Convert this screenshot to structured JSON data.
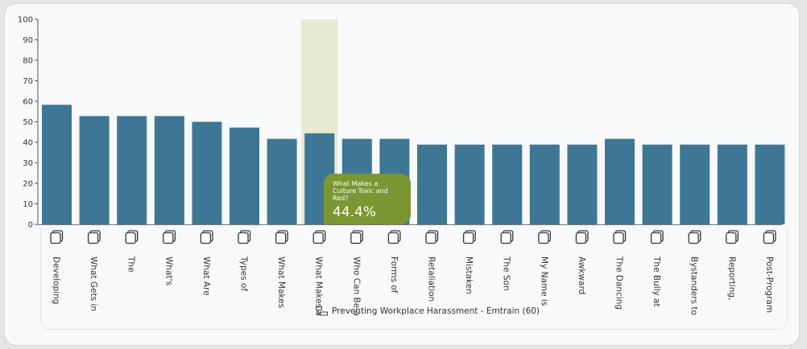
{
  "colors": {
    "bar": "#3e7796",
    "highlight_band": "#e5ead0",
    "tooltip_bg": "#7b9632"
  },
  "icons": {
    "category_icon": "course-document-icon",
    "group_icon": "hierarchy-group-icon"
  },
  "group": {
    "label": "Preventing Workplace Harassment - Emtrain (60)"
  },
  "tooltip": {
    "title": "What Makes a Culture Toxic and Red?",
    "value": "44.4%"
  },
  "chart_data": {
    "type": "bar",
    "categories": [
      "Developing",
      "What Gets in",
      "The",
      "What's",
      "What Are",
      "Types of",
      "What Makes",
      "What Makes a",
      "Who Can Be a",
      "Forms of",
      "Retaliation",
      "Mistaken",
      "The Son",
      "My Name is",
      "Awkward",
      "The Dancing",
      "The Bully at",
      "Bystanders to",
      "Reporting,",
      "Post-Program"
    ],
    "values": [
      58.3,
      52.8,
      52.8,
      52.8,
      50.0,
      47.2,
      41.7,
      44.4,
      41.7,
      41.7,
      38.9,
      38.9,
      38.9,
      38.9,
      38.9,
      41.7,
      38.9,
      38.9,
      38.9,
      38.9
    ],
    "highlighted_index": 7,
    "ylim": [
      0,
      100
    ],
    "yticks": [
      0,
      10,
      20,
      30,
      40,
      50,
      60,
      70,
      80,
      90,
      100
    ],
    "grid": false,
    "legend": "none",
    "title": "",
    "xlabel": "",
    "ylabel": ""
  }
}
